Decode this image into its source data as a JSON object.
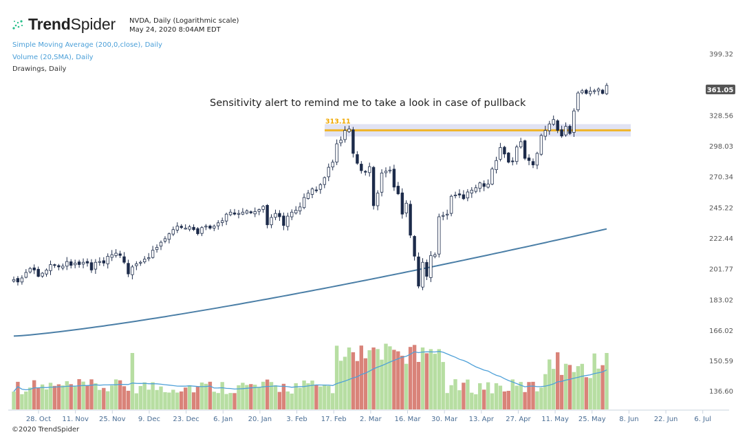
{
  "brand": {
    "name_bold": "Trend",
    "name_regular": "Spider",
    "logo_icon": "trendspider-dots-icon",
    "copyright": "©2020 TrendSpider"
  },
  "symbol": {
    "title": "NVDA, Daily (Logarithmic scale)",
    "timestamp": "May 24, 2020 8:04AM EDT"
  },
  "indicators": {
    "sma": "Simple Moving Average (200,0,close), Daily",
    "volume": "Volume (20,SMA), Daily",
    "drawings": "Drawings, Daily"
  },
  "colors": {
    "candle_body": "#1c2b4a",
    "sma_line": "#4a7ea6",
    "level_line": "#f0b428",
    "level_band": "#d9dcf0",
    "vol_up": "#b7dea2",
    "vol_down": "#d98379",
    "vol_sma": "#4ea0d8",
    "badge": "#555555"
  },
  "chart_data": {
    "type": "candlestick",
    "title": "NVDA, Daily (Logarithmic scale)",
    "y_scale": "log",
    "ylim": [
      150,
      410
    ],
    "y_ticks": [
      {
        "label": "399.32",
        "value": 399.32
      },
      {
        "label": "328.56",
        "value": 328.56
      },
      {
        "label": "298.03",
        "value": 298.03
      },
      {
        "label": "270.34",
        "value": 270.34
      },
      {
        "label": "245.22",
        "value": 245.22
      },
      {
        "label": "222.44",
        "value": 222.44
      },
      {
        "label": "201.77",
        "value": 201.77
      },
      {
        "label": "183.02",
        "value": 183.02
      },
      {
        "label": "166.02",
        "value": 166.02
      },
      {
        "label": "150.59",
        "value": 150.59
      },
      {
        "label": "136.60",
        "value": 136.6
      }
    ],
    "x_ticks": [
      "28. Oct",
      "11. Nov",
      "25. Nov",
      "9. Dec",
      "23. Dec",
      "6. Jan",
      "20. Jan",
      "3. Feb",
      "17. Feb",
      "2. Mar",
      "16. Mar",
      "30. Mar",
      "13. Apr",
      "27. Apr",
      "11. May",
      "25. May",
      "8. Jun",
      "22. Jun",
      "6. Jul"
    ],
    "last_price": "361.05",
    "level": {
      "label": "313.11",
      "value": 313.11
    },
    "annotation": "Sensitivity alert to remind me to take a look in case of pullback",
    "close": [
      [
        "10/21",
        195.0
      ],
      [
        "10/22",
        193.5
      ],
      [
        "10/23",
        196.0
      ],
      [
        "10/24",
        199.5
      ],
      [
        "10/25",
        202.0
      ],
      [
        "10/28",
        201.0
      ],
      [
        "10/29",
        197.0
      ],
      [
        "10/30",
        199.0
      ],
      [
        "10/31",
        201.0
      ],
      [
        "11/1",
        204.5
      ],
      [
        "11/4",
        204.0
      ],
      [
        "11/5",
        203.0
      ],
      [
        "11/6",
        203.5
      ],
      [
        "11/7",
        206.5
      ],
      [
        "11/8",
        204.0
      ],
      [
        "11/11",
        205.5
      ],
      [
        "11/12",
        204.5
      ],
      [
        "11/13",
        206.0
      ],
      [
        "11/14",
        205.5
      ],
      [
        "11/15",
        201.0
      ],
      [
        "11/18",
        206.0
      ],
      [
        "11/19",
        206.5
      ],
      [
        "11/20",
        205.5
      ],
      [
        "11/21",
        210.0
      ],
      [
        "11/22",
        211.0
      ],
      [
        "11/25",
        212.0
      ],
      [
        "11/26",
        210.5
      ],
      [
        "11/27",
        206.0
      ],
      [
        "11/29",
        198.5
      ],
      [
        "12/2",
        203.0
      ],
      [
        "12/3",
        205.0
      ],
      [
        "12/4",
        206.0
      ],
      [
        "12/5",
        208.0
      ],
      [
        "12/6",
        209.0
      ],
      [
        "12/9",
        214.0
      ],
      [
        "12/10",
        216.0
      ],
      [
        "12/11",
        219.5
      ],
      [
        "12/12",
        222.0
      ],
      [
        "12/13",
        225.5
      ],
      [
        "12/16",
        228.5
      ],
      [
        "12/17",
        231.0
      ],
      [
        "12/18",
        230.0
      ],
      [
        "12/19",
        229.5
      ],
      [
        "12/20",
        230.5
      ],
      [
        "12/23",
        228.5
      ],
      [
        "12/24",
        225.5
      ],
      [
        "12/26",
        230.0
      ],
      [
        "12/27",
        231.0
      ],
      [
        "12/30",
        229.5
      ],
      [
        "12/31",
        231.0
      ],
      [
        "1/2",
        233.5
      ],
      [
        "1/3",
        235.0
      ],
      [
        "1/6",
        240.0
      ],
      [
        "1/7",
        241.5
      ],
      [
        "1/8",
        240.0
      ],
      [
        "1/9",
        240.5
      ],
      [
        "1/10",
        241.5
      ],
      [
        "1/13",
        242.5
      ],
      [
        "1/14",
        241.0
      ],
      [
        "1/15",
        242.0
      ],
      [
        "1/16",
        243.5
      ],
      [
        "1/17",
        246.0
      ],
      [
        "1/21",
        232.0
      ],
      [
        "1/22",
        237.5
      ],
      [
        "1/23",
        240.5
      ],
      [
        "1/24",
        238.0
      ],
      [
        "1/27",
        231.5
      ],
      [
        "1/28",
        238.5
      ],
      [
        "1/29",
        241.5
      ],
      [
        "1/30",
        243.0
      ],
      [
        "1/31",
        245.5
      ],
      [
        "2/3",
        253.0
      ],
      [
        "2/4",
        256.5
      ],
      [
        "2/5",
        260.0
      ],
      [
        "2/6",
        259.0
      ],
      [
        "2/7",
        263.5
      ],
      [
        "2/10",
        269.5
      ],
      [
        "2/11",
        278.5
      ],
      [
        "2/12",
        283.0
      ],
      [
        "2/13",
        300.0
      ],
      [
        "2/14",
        303.5
      ],
      [
        "2/18",
        313.0
      ],
      [
        "2/19",
        314.5
      ],
      [
        "2/20",
        291.0
      ],
      [
        "2/21",
        282.0
      ],
      [
        "2/24",
        275.5
      ],
      [
        "2/25",
        274.5
      ],
      [
        "2/26",
        279.0
      ],
      [
        "2/27",
        246.5
      ],
      [
        "2/28",
        256.5
      ],
      [
        "3/2",
        273.5
      ],
      [
        "3/3",
        275.0
      ],
      [
        "3/4",
        276.0
      ],
      [
        "3/5",
        261.5
      ],
      [
        "3/6",
        256.0
      ],
      [
        "3/9",
        240.0
      ],
      [
        "3/10",
        248.5
      ],
      [
        "3/11",
        224.5
      ],
      [
        "3/12",
        210.0
      ],
      [
        "3/13",
        191.0
      ],
      [
        "3/16",
        206.0
      ],
      [
        "3/17",
        197.0
      ],
      [
        "3/18",
        210.5
      ],
      [
        "3/19",
        211.0
      ],
      [
        "3/20",
        238.0
      ],
      [
        "3/23",
        239.0
      ],
      [
        "3/24",
        240.0
      ],
      [
        "3/25",
        254.0
      ],
      [
        "3/26",
        255.0
      ],
      [
        "3/27",
        255.0
      ],
      [
        "3/30",
        252.0
      ],
      [
        "3/31",
        257.5
      ],
      [
        "4/1",
        259.0
      ],
      [
        "4/2",
        261.0
      ],
      [
        "4/3",
        265.0
      ],
      [
        "4/6",
        262.0
      ],
      [
        "4/7",
        264.0
      ],
      [
        "4/8",
        277.0
      ],
      [
        "4/9",
        284.5
      ],
      [
        "4/13",
        296.5
      ],
      [
        "4/14",
        290.5
      ],
      [
        "4/15",
        283.0
      ],
      [
        "4/16",
        283.5
      ],
      [
        "4/17",
        297.0
      ],
      [
        "4/20",
        302.0
      ],
      [
        "4/21",
        286.5
      ],
      [
        "4/22",
        284.5
      ],
      [
        "4/23",
        280.5
      ],
      [
        "4/24",
        291.0
      ],
      [
        "4/27",
        308.0
      ],
      [
        "4/28",
        313.0
      ],
      [
        "4/29",
        319.5
      ],
      [
        "4/30",
        324.0
      ],
      [
        "5/1",
        313.0
      ],
      [
        "5/4",
        307.5
      ],
      [
        "5/5",
        317.0
      ],
      [
        "5/6",
        310.0
      ],
      [
        "5/7",
        333.0
      ],
      [
        "5/8",
        352.5
      ],
      [
        "5/11",
        355.0
      ],
      [
        "5/12",
        352.0
      ],
      [
        "5/13",
        354.5
      ],
      [
        "5/14",
        355.0
      ],
      [
        "5/15",
        357.0
      ],
      [
        "5/18",
        352.0
      ],
      [
        "5/19",
        361.05
      ]
    ]
  }
}
